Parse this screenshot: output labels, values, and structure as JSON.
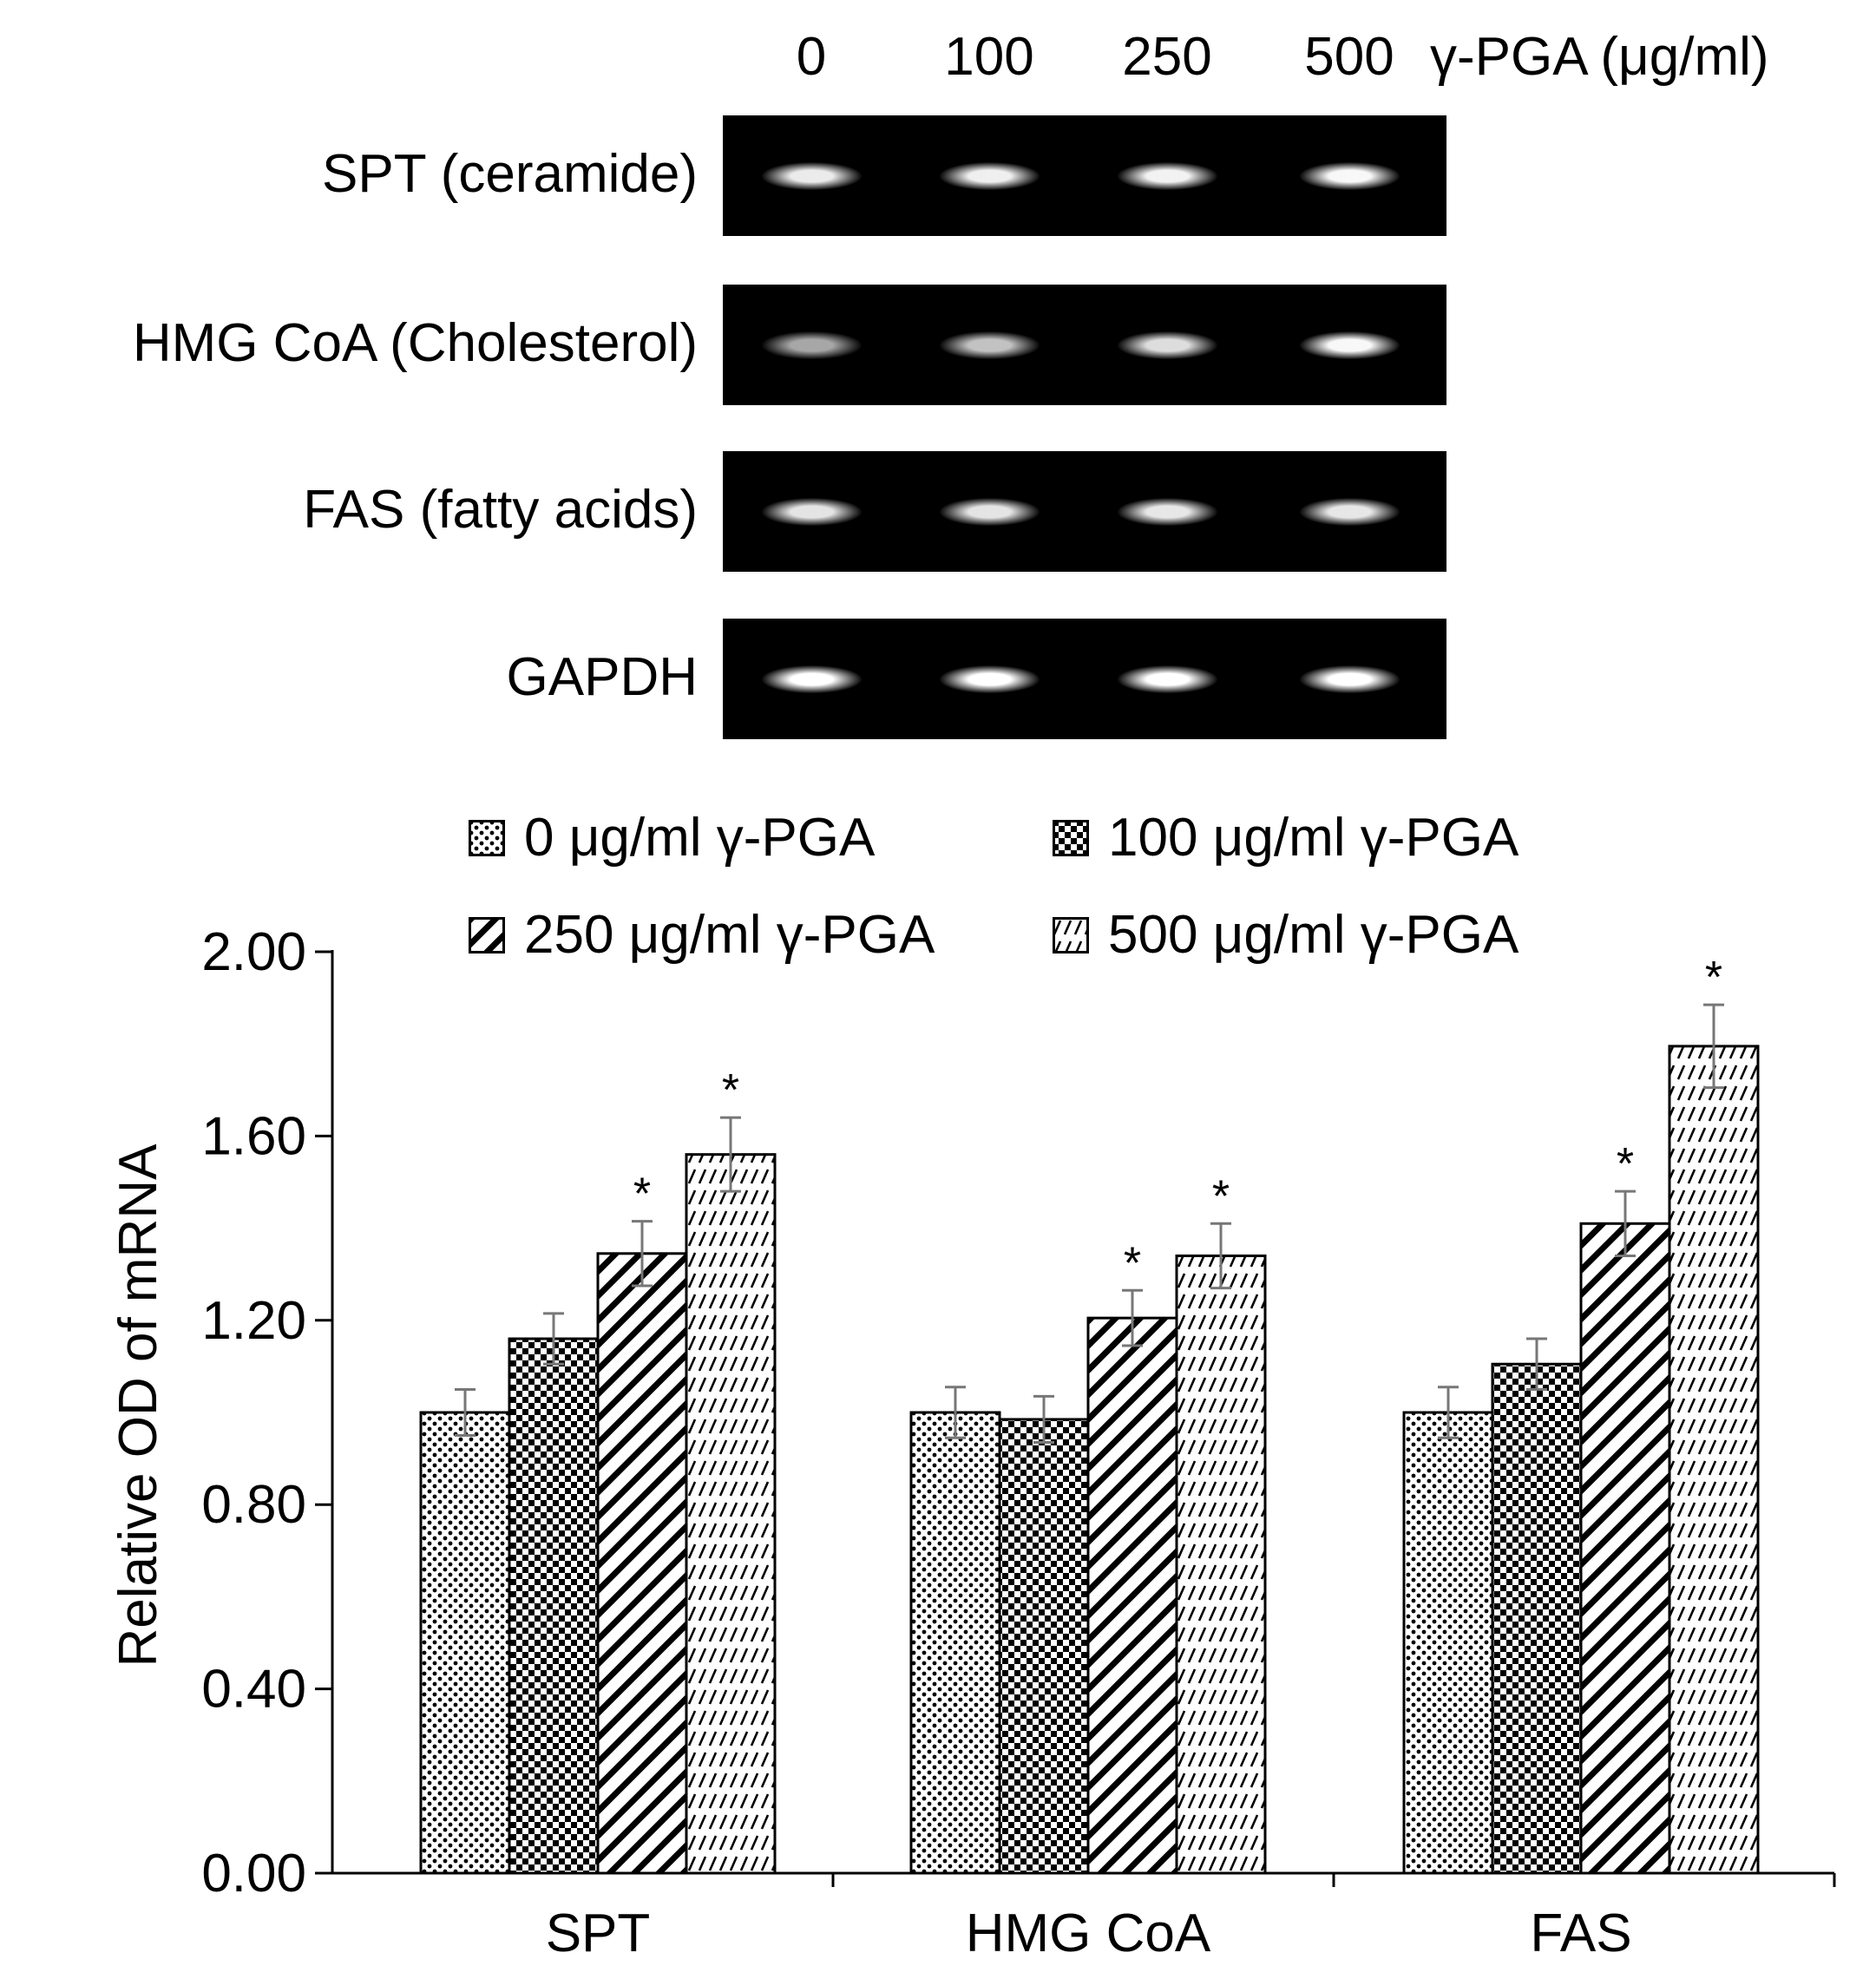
{
  "gel": {
    "lanes": [
      "0",
      "100",
      "250",
      "500"
    ],
    "unit": "γ-PGA (μg/ml)",
    "rows": [
      {
        "label": "SPT (ceramide)",
        "intensity": [
          0.85,
          0.88,
          0.9,
          0.95
        ]
      },
      {
        "label": "HMG CoA (Cholesterol)",
        "intensity": [
          0.35,
          0.55,
          0.75,
          0.95
        ]
      },
      {
        "label": "FAS (fatty acids)",
        "intensity": [
          0.8,
          0.8,
          0.82,
          0.82
        ]
      },
      {
        "label": "GAPDH",
        "intensity": [
          1.0,
          1.0,
          1.0,
          1.0
        ]
      }
    ]
  },
  "chart_data": {
    "type": "bar",
    "categories": [
      "SPT",
      "HMG CoA",
      "FAS"
    ],
    "ylabel": "Relative OD of mRNA",
    "xlabel": "",
    "ylim": [
      0,
      2.0
    ],
    "yticks": [
      "0.00",
      "0.40",
      "0.80",
      "1.20",
      "1.60",
      "2.00"
    ],
    "legend_position": "top",
    "series": [
      {
        "name": "0 μg/ml γ-PGA",
        "pattern": "dots",
        "values": [
          1.0,
          1.0,
          1.0
        ],
        "errors": [
          0.05,
          0.055,
          0.055
        ],
        "significant": [
          false,
          false,
          false
        ]
      },
      {
        "name": "100 μg/ml γ-PGA",
        "pattern": "checker",
        "values": [
          1.16,
          0.985,
          1.105
        ],
        "errors": [
          0.055,
          0.05,
          0.055
        ],
        "significant": [
          false,
          false,
          false
        ]
      },
      {
        "name": "250 μg/ml γ-PGA",
        "pattern": "diagonal",
        "values": [
          1.345,
          1.205,
          1.41
        ],
        "errors": [
          0.07,
          0.06,
          0.07
        ],
        "significant": [
          true,
          true,
          true
        ]
      },
      {
        "name": "500 μg/ml γ-PGA",
        "pattern": "fine-diagonal",
        "values": [
          1.56,
          1.34,
          1.795
        ],
        "errors": [
          0.08,
          0.07,
          0.09
        ],
        "significant": [
          true,
          true,
          true
        ]
      }
    ],
    "significance_marker": "*"
  }
}
